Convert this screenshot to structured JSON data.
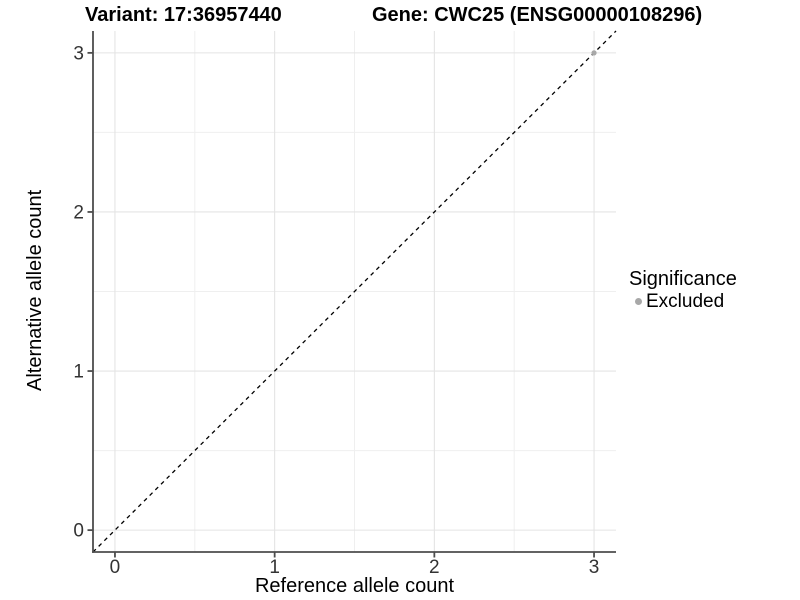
{
  "header": {
    "variant_title": "Variant: 17:36957440",
    "gene_title": "Gene: CWC25 (ENSG00000108296)"
  },
  "chart_data": {
    "type": "scatter",
    "title": "Variant: 17:36957440  Gene: CWC25 (ENSG00000108296)",
    "xlabel": "Reference allele count",
    "ylabel": "Alternative allele count",
    "xlim": [
      -0.1375,
      3.1375
    ],
    "ylim": [
      -0.1375,
      3.1375
    ],
    "x_ticks": [
      0,
      1,
      2,
      3
    ],
    "y_ticks": [
      0,
      1,
      2,
      3
    ],
    "x_minor_ticks": [
      0.5,
      1.5,
      2.5
    ],
    "y_minor_ticks": [
      0.5,
      1.5,
      2.5
    ],
    "grid": "major+minor",
    "legend_position": "right",
    "series": [
      {
        "name": "Excluded",
        "color": "#a8a8a8",
        "points": [
          {
            "x": 3,
            "y": 3
          }
        ]
      }
    ],
    "reference_line": {
      "label": "identity-line",
      "slope": 1,
      "intercept": 0,
      "style": "dashed",
      "color": "#000000"
    },
    "legend": {
      "title": "Significance",
      "items": [
        {
          "label": "Excluded",
          "color": "#a8a8a8"
        }
      ]
    }
  },
  "style": {
    "background": "#ffffff",
    "grid_major_color": "#e4e4e4",
    "grid_minor_color": "#efefef",
    "axis_line_color": "#4d4d4d",
    "tick_label_color": "#333333",
    "point_radius": 2.6,
    "legend_dot_color": "#a8a8a8"
  }
}
